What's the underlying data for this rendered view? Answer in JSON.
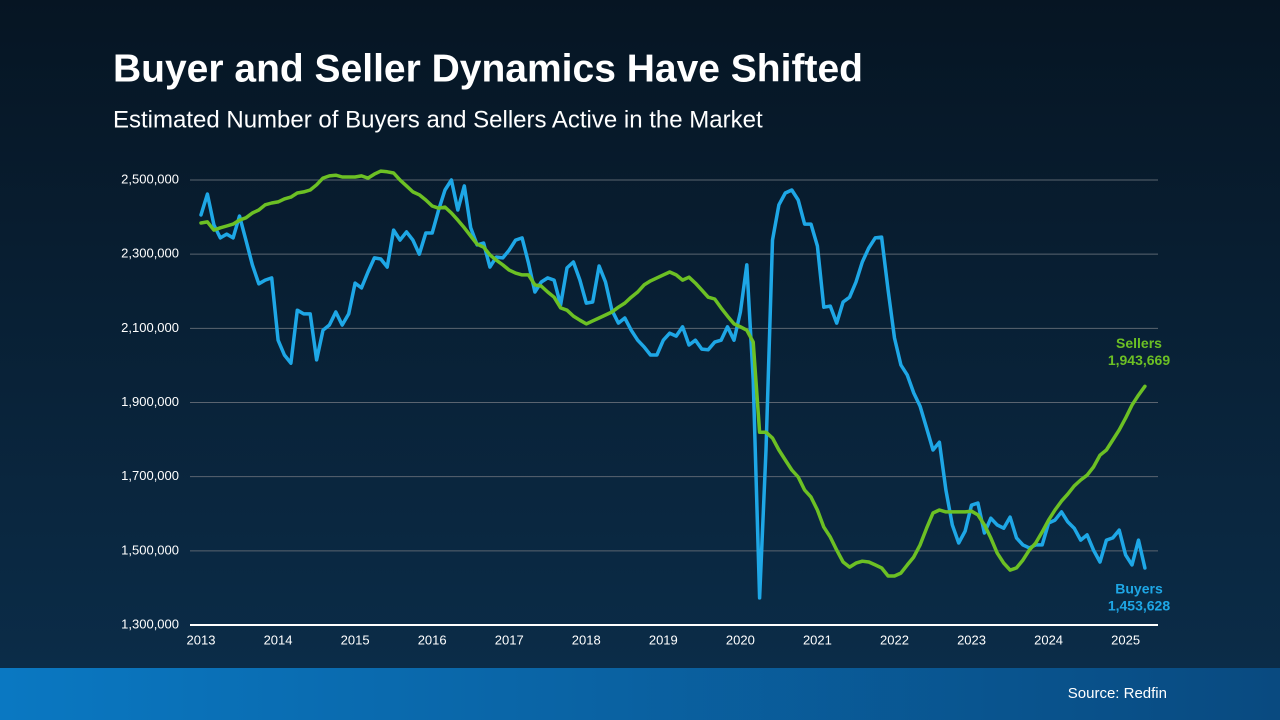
{
  "chart_data": {
    "type": "line",
    "title": "Buyer and Seller Dynamics Have Shifted",
    "subtitle": "Estimated Number of Buyers and Sellers Active in the Market",
    "source": "Source: Redfin",
    "xlim": [
      2013,
      2025.42
    ],
    "xticks": [
      2013,
      2014,
      2015,
      2016,
      2017,
      2018,
      2019,
      2020,
      2021,
      2022,
      2023,
      2024,
      2025
    ],
    "ylim": [
      1300000,
      2500000
    ],
    "yticks": [
      {
        "value": 1300000,
        "label": "1,300,000"
      },
      {
        "value": 1500000,
        "label": "1,500,000"
      },
      {
        "value": 1700000,
        "label": "1,700,000"
      },
      {
        "value": 1900000,
        "label": "1,900,000"
      },
      {
        "value": 2100000,
        "label": "2,100,000"
      },
      {
        "value": 2300000,
        "label": "2,300,000"
      },
      {
        "value": 2500000,
        "label": "2,500,000"
      }
    ],
    "grid": true,
    "x": [
      2013,
      2013.083,
      2013.167,
      2013.25,
      2013.333,
      2013.417,
      2013.5,
      2013.583,
      2013.667,
      2013.75,
      2013.833,
      2013.917,
      2014,
      2014.083,
      2014.167,
      2014.25,
      2014.333,
      2014.417,
      2014.5,
      2014.583,
      2014.667,
      2014.75,
      2014.833,
      2014.917,
      2015,
      2015.083,
      2015.167,
      2015.25,
      2015.333,
      2015.417,
      2015.5,
      2015.583,
      2015.667,
      2015.75,
      2015.833,
      2015.917,
      2016,
      2016.083,
      2016.167,
      2016.25,
      2016.333,
      2016.417,
      2016.5,
      2016.583,
      2016.667,
      2016.75,
      2016.833,
      2016.917,
      2017,
      2017.083,
      2017.167,
      2017.25,
      2017.333,
      2017.417,
      2017.5,
      2017.583,
      2017.667,
      2017.75,
      2017.833,
      2017.917,
      2018,
      2018.083,
      2018.167,
      2018.25,
      2018.333,
      2018.417,
      2018.5,
      2018.583,
      2018.667,
      2018.75,
      2018.833,
      2018.917,
      2019,
      2019.083,
      2019.167,
      2019.25,
      2019.333,
      2019.417,
      2019.5,
      2019.583,
      2019.667,
      2019.75,
      2019.833,
      2019.917,
      2020,
      2020.083,
      2020.167,
      2020.25,
      2020.333,
      2020.417,
      2020.5,
      2020.583,
      2020.667,
      2020.75,
      2020.833,
      2020.917,
      2021,
      2021.083,
      2021.167,
      2021.25,
      2021.333,
      2021.417,
      2021.5,
      2021.583,
      2021.667,
      2021.75,
      2021.833,
      2021.917,
      2022,
      2022.083,
      2022.167,
      2022.25,
      2022.333,
      2022.417,
      2022.5,
      2022.583,
      2022.667,
      2022.75,
      2022.833,
      2022.917,
      2023,
      2023.083,
      2023.167,
      2023.25,
      2023.333,
      2023.417,
      2023.5,
      2023.583,
      2023.667,
      2023.75,
      2023.833,
      2023.917,
      2024,
      2024.083,
      2024.167,
      2024.25,
      2024.333,
      2024.417,
      2024.5,
      2024.583,
      2024.667,
      2024.75,
      2024.833,
      2024.917,
      2025,
      2025.083,
      2025.167,
      2025.25
    ],
    "series": [
      {
        "name": "Sellers",
        "color": "#6cc024",
        "end_label": "1,943,669",
        "values": [
          2384000,
          2387000,
          2365000,
          2371000,
          2376000,
          2381000,
          2392000,
          2398000,
          2411000,
          2419000,
          2433000,
          2438000,
          2441000,
          2449000,
          2454000,
          2465000,
          2468000,
          2473000,
          2487000,
          2505000,
          2511000,
          2513000,
          2508000,
          2508000,
          2508000,
          2511000,
          2505000,
          2516000,
          2524000,
          2522000,
          2519000,
          2500000,
          2484000,
          2468000,
          2460000,
          2446000,
          2430000,
          2424000,
          2427000,
          2411000,
          2392000,
          2371000,
          2349000,
          2327000,
          2319000,
          2298000,
          2284000,
          2271000,
          2257000,
          2249000,
          2244000,
          2244000,
          2217000,
          2214000,
          2198000,
          2184000,
          2155000,
          2149000,
          2133000,
          2122000,
          2112000,
          2120000,
          2128000,
          2136000,
          2144000,
          2157000,
          2168000,
          2184000,
          2198000,
          2217000,
          2228000,
          2236000,
          2244000,
          2252000,
          2244000,
          2230000,
          2238000,
          2222000,
          2203000,
          2184000,
          2179000,
          2155000,
          2133000,
          2112000,
          2104000,
          2095000,
          2063000,
          1820000,
          1820000,
          1804000,
          1772000,
          1745000,
          1718000,
          1699000,
          1664000,
          1645000,
          1610000,
          1564000,
          1537000,
          1502000,
          1470000,
          1456000,
          1467000,
          1472000,
          1470000,
          1462000,
          1454000,
          1432000,
          1432000,
          1440000,
          1462000,
          1483000,
          1516000,
          1561000,
          1602000,
          1610000,
          1605000,
          1605000,
          1605000,
          1605000,
          1607000,
          1597000,
          1570000,
          1535000,
          1494000,
          1467000,
          1448000,
          1454000,
          1475000,
          1502000,
          1521000,
          1551000,
          1583000,
          1610000,
          1634000,
          1653000,
          1675000,
          1691000,
          1704000,
          1726000,
          1758000,
          1772000,
          1799000,
          1826000,
          1858000,
          1893000,
          1920000,
          1943669
        ]
      },
      {
        "name": "Buyers",
        "color": "#1ea7e6",
        "end_label": "1,453,628",
        "values": [
          2406000,
          2462000,
          2379000,
          2344000,
          2354000,
          2344000,
          2403000,
          2338000,
          2271000,
          2220000,
          2230000,
          2236000,
          2068000,
          2028000,
          2006000,
          2149000,
          2139000,
          2139000,
          2015000,
          2095000,
          2109000,
          2144000,
          2109000,
          2139000,
          2222000,
          2209000,
          2252000,
          2290000,
          2287000,
          2265000,
          2365000,
          2338000,
          2360000,
          2338000,
          2300000,
          2357000,
          2357000,
          2419000,
          2473000,
          2500000,
          2419000,
          2484000,
          2371000,
          2325000,
          2330000,
          2265000,
          2292000,
          2290000,
          2311000,
          2338000,
          2344000,
          2276000,
          2198000,
          2225000,
          2236000,
          2230000,
          2163000,
          2263000,
          2279000,
          2230000,
          2168000,
          2171000,
          2268000,
          2225000,
          2149000,
          2114000,
          2128000,
          2095000,
          2068000,
          2050000,
          2028000,
          2028000,
          2068000,
          2087000,
          2079000,
          2104000,
          2055000,
          2068000,
          2044000,
          2042000,
          2063000,
          2068000,
          2104000,
          2068000,
          2144000,
          2271000,
          1961000,
          1373000,
          1772000,
          2338000,
          2433000,
          2465000,
          2473000,
          2446000,
          2381000,
          2381000,
          2322000,
          2157000,
          2160000,
          2114000,
          2171000,
          2184000,
          2225000,
          2279000,
          2317000,
          2344000,
          2346000,
          2203000,
          2074000,
          2001000,
          1974000,
          1926000,
          1890000,
          1831000,
          1772000,
          1793000,
          1664000,
          1570000,
          1521000,
          1553000,
          1623000,
          1629000,
          1548000,
          1588000,
          1570000,
          1561000,
          1591000,
          1535000,
          1516000,
          1508000,
          1516000,
          1516000,
          1575000,
          1583000,
          1605000,
          1578000,
          1561000,
          1529000,
          1543000,
          1502000,
          1470000,
          1529000,
          1535000,
          1556000,
          1489000,
          1462000,
          1529000,
          1453628
        ]
      }
    ]
  }
}
